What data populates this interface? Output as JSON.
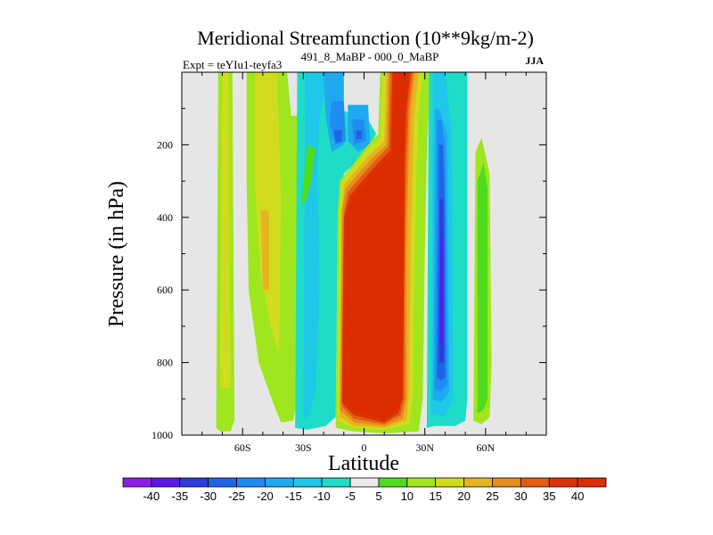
{
  "chart_data": {
    "type": "heatmap",
    "title": "Meridional Streamfunction (10**9kg/m-2)",
    "subtitle_left": "Expt = teYIu1-teyfa3",
    "subtitle_center": "491_8_MaBP - 000_0_MaBP",
    "subtitle_right": "JJA",
    "xlabel": "Latitude",
    "ylabel": "Pressure (in hPa)",
    "xlim": [
      -90,
      90
    ],
    "ylim": [
      1000,
      0
    ],
    "x_ticks": [
      {
        "value": -60,
        "label": "60S"
      },
      {
        "value": -30,
        "label": "30S"
      },
      {
        "value": 0,
        "label": "0"
      },
      {
        "value": 30,
        "label": "30N"
      },
      {
        "value": 60,
        "label": "60N"
      }
    ],
    "y_ticks": [
      {
        "value": 200,
        "label": "200"
      },
      {
        "value": 400,
        "label": "400"
      },
      {
        "value": 600,
        "label": "600"
      },
      {
        "value": 800,
        "label": "800"
      },
      {
        "value": 1000,
        "label": "1000"
      }
    ],
    "missing_color": "#e6e6e6",
    "colorbar": {
      "labels": [
        "-40",
        "-35",
        "-30",
        "-25",
        "-20",
        "-15",
        "-10",
        "-5",
        "5",
        "10",
        "15",
        "20",
        "25",
        "30",
        "35",
        "40"
      ],
      "colors": [
        "#8c1ee6",
        "#5a19e6",
        "#2d3cdc",
        "#1e64e6",
        "#1e8cf0",
        "#1eaaf0",
        "#1ec8e6",
        "#1edcc8",
        "#ebebeb",
        "#50dc1e",
        "#a0e61e",
        "#d2dc1e",
        "#e6b41e",
        "#e68c1e",
        "#e65a14",
        "#dc3200",
        "#dc2d00"
      ]
    },
    "regions": [
      {
        "level": "10",
        "polygon": [
          [
            -73,
            980
          ],
          [
            -72,
            0
          ],
          [
            -65,
            0
          ],
          [
            -64,
            960
          ],
          [
            -66,
            990
          ],
          [
            -71,
            990
          ]
        ]
      },
      {
        "level": "15",
        "polygon": [
          [
            -71,
            870
          ],
          [
            -70,
            0
          ],
          [
            -67,
            0
          ],
          [
            -66,
            870
          ]
        ]
      },
      {
        "level": "10",
        "polygon": [
          [
            -58,
            0
          ],
          [
            -38,
            0
          ],
          [
            -36,
            120
          ],
          [
            -30,
            120
          ],
          [
            -33,
            900
          ],
          [
            -35,
            960
          ],
          [
            -41,
            965
          ],
          [
            -45,
            910
          ],
          [
            -52,
            800
          ],
          [
            -57,
            600
          ],
          [
            -58,
            300
          ]
        ]
      },
      {
        "level": "15",
        "polygon": [
          [
            -54,
            0
          ],
          [
            -43,
            0
          ],
          [
            -41,
            350
          ],
          [
            -42,
            780
          ],
          [
            -46,
            700
          ],
          [
            -51,
            560
          ],
          [
            -54,
            300
          ]
        ]
      },
      {
        "level": "20",
        "polygon": [
          [
            -51,
            380
          ],
          [
            -47,
            380
          ],
          [
            -47,
            600
          ],
          [
            -50,
            600
          ]
        ]
      },
      {
        "level": "-5",
        "polygon": [
          [
            -34,
            980
          ],
          [
            -33,
            0
          ],
          [
            -18,
            0
          ],
          [
            -14,
            100
          ],
          [
            -8,
            110
          ],
          [
            -2,
            120
          ],
          [
            3,
            140
          ],
          [
            6,
            170
          ],
          [
            3,
            200
          ],
          [
            -3,
            240
          ],
          [
            -10,
            280
          ],
          [
            -13,
            380
          ],
          [
            -14,
            950
          ],
          [
            -19,
            975
          ],
          [
            -28,
            985
          ]
        ]
      },
      {
        "level": "-10",
        "polygon": [
          [
            -30,
            960
          ],
          [
            -29,
            0
          ],
          [
            -18,
            0
          ],
          [
            -20,
            70
          ],
          [
            -22,
            120
          ],
          [
            -23,
            250
          ],
          [
            -22,
            600
          ],
          [
            -24,
            880
          ],
          [
            -27,
            945
          ]
        ]
      },
      {
        "level": "-15",
        "polygon": [
          [
            -20,
            0
          ],
          [
            -10,
            0
          ],
          [
            -10,
            200
          ],
          [
            -16,
            220
          ],
          [
            -19,
            120
          ]
        ]
      },
      {
        "level": "-20",
        "polygon": [
          [
            -16,
            80
          ],
          [
            -10,
            80
          ],
          [
            -9,
            190
          ],
          [
            -14,
            200
          ],
          [
            -17,
            140
          ]
        ]
      },
      {
        "level": "-25",
        "polygon": [
          [
            -15,
            160
          ],
          [
            -11,
            160
          ],
          [
            -11,
            190
          ],
          [
            -14,
            195
          ]
        ]
      },
      {
        "level": "-15",
        "polygon": [
          [
            -8,
            90
          ],
          [
            2,
            90
          ],
          [
            3,
            200
          ],
          [
            -3,
            220
          ],
          [
            -8,
            190
          ]
        ]
      },
      {
        "level": "-20",
        "polygon": [
          [
            -6,
            130
          ],
          [
            0,
            130
          ],
          [
            1,
            190
          ],
          [
            -5,
            200
          ]
        ]
      },
      {
        "level": "-25",
        "polygon": [
          [
            -4,
            160
          ],
          [
            -1,
            160
          ],
          [
            -1,
            185
          ],
          [
            -4,
            185
          ]
        ]
      },
      {
        "level": "5",
        "polygon": [
          [
            -31,
            360
          ],
          [
            -28,
            200
          ],
          [
            -24,
            210
          ],
          [
            -26,
            300
          ],
          [
            -29,
            360
          ]
        ]
      },
      {
        "level": "-10",
        "polygon": [
          [
            -12,
            390
          ],
          [
            -10,
            300
          ],
          [
            -6,
            250
          ],
          [
            0,
            220
          ],
          [
            3,
            205
          ],
          [
            4,
            200
          ],
          [
            0,
            240
          ],
          [
            -8,
            280
          ]
        ]
      },
      {
        "level": "10",
        "polygon": [
          [
            -14,
            980
          ],
          [
            -13,
            380
          ],
          [
            -12,
            300
          ],
          [
            -5,
            250
          ],
          [
            2,
            200
          ],
          [
            7,
            170
          ],
          [
            8,
            0
          ],
          [
            34,
            0
          ],
          [
            32,
            90
          ],
          [
            31,
            230
          ],
          [
            30,
            500
          ],
          [
            29,
            900
          ],
          [
            27,
            990
          ],
          [
            10,
            995
          ],
          [
            -5,
            990
          ]
        ]
      },
      {
        "level": "15",
        "polygon": [
          [
            -13,
            960
          ],
          [
            -12,
            380
          ],
          [
            -11,
            300
          ],
          [
            -5,
            260
          ],
          [
            2,
            210
          ],
          [
            8,
            180
          ],
          [
            9,
            0
          ],
          [
            29,
            0
          ],
          [
            27,
            100
          ],
          [
            26,
            250
          ],
          [
            25,
            500
          ],
          [
            24,
            900
          ],
          [
            22,
            970
          ],
          [
            10,
            985
          ],
          [
            -5,
            980
          ]
        ]
      },
      {
        "level": "20",
        "polygon": [
          [
            -12,
            950
          ],
          [
            -11,
            380
          ],
          [
            -10,
            310
          ],
          [
            -4,
            270
          ],
          [
            4,
            220
          ],
          [
            10,
            190
          ],
          [
            11,
            0
          ],
          [
            27,
            0
          ],
          [
            25,
            100
          ],
          [
            24,
            250
          ],
          [
            23,
            500
          ],
          [
            22,
            900
          ],
          [
            21,
            960
          ],
          [
            10,
            980
          ],
          [
            -5,
            975
          ]
        ]
      },
      {
        "level": "25",
        "polygon": [
          [
            -12,
            930
          ],
          [
            -11,
            380
          ],
          [
            -9,
            320
          ],
          [
            -3,
            280
          ],
          [
            5,
            230
          ],
          [
            11,
            200
          ],
          [
            12,
            0
          ],
          [
            25,
            0
          ],
          [
            23,
            100
          ],
          [
            22,
            250
          ],
          [
            21,
            500
          ],
          [
            21,
            900
          ],
          [
            19,
            955
          ],
          [
            10,
            975
          ],
          [
            -5,
            965
          ]
        ]
      },
      {
        "level": "30",
        "polygon": [
          [
            -11,
            920
          ],
          [
            -10,
            390
          ],
          [
            -8,
            330
          ],
          [
            -2,
            290
          ],
          [
            6,
            240
          ],
          [
            12,
            205
          ],
          [
            13,
            0
          ],
          [
            24,
            0
          ],
          [
            22,
            100
          ],
          [
            21,
            250
          ],
          [
            20,
            500
          ],
          [
            20,
            900
          ],
          [
            18,
            945
          ],
          [
            10,
            970
          ],
          [
            -5,
            955
          ]
        ]
      },
      {
        "level": "35",
        "polygon": [
          [
            -11,
            910
          ],
          [
            -10,
            400
          ],
          [
            -7,
            340
          ],
          [
            -1,
            300
          ],
          [
            7,
            250
          ],
          [
            13,
            215
          ],
          [
            14,
            0
          ],
          [
            23,
            0
          ],
          [
            21,
            100
          ],
          [
            20,
            250
          ],
          [
            20,
            500
          ],
          [
            19,
            900
          ],
          [
            17,
            940
          ],
          [
            10,
            965
          ],
          [
            -5,
            945
          ]
        ]
      },
      {
        "level": "40",
        "polygon": [
          [
            -10,
            900
          ],
          [
            -9,
            400
          ],
          [
            -6,
            350
          ],
          [
            0,
            310
          ],
          [
            8,
            260
          ],
          [
            14,
            225
          ],
          [
            15,
            0
          ],
          [
            22,
            0
          ],
          [
            20,
            100
          ],
          [
            20,
            250
          ],
          [
            19,
            500
          ],
          [
            19,
            900
          ],
          [
            16,
            930
          ],
          [
            10,
            955
          ],
          [
            -5,
            935
          ]
        ]
      },
      {
        "level": "-5",
        "polygon": [
          [
            31,
            980
          ],
          [
            32,
            0
          ],
          [
            51,
            0
          ],
          [
            51,
            900
          ],
          [
            50,
            960
          ],
          [
            45,
            975
          ],
          [
            35,
            975
          ]
        ]
      },
      {
        "level": "-10",
        "polygon": [
          [
            33,
            940
          ],
          [
            34,
            0
          ],
          [
            40,
            0
          ],
          [
            43,
            150
          ],
          [
            44,
            900
          ],
          [
            40,
            950
          ],
          [
            36,
            945
          ]
        ]
      },
      {
        "level": "-15",
        "polygon": [
          [
            34,
            900
          ],
          [
            35,
            100
          ],
          [
            37,
            100
          ],
          [
            41,
            170
          ],
          [
            42,
            880
          ],
          [
            38,
            910
          ]
        ]
      },
      {
        "level": "-20",
        "polygon": [
          [
            35,
            870
          ],
          [
            36,
            130
          ],
          [
            38,
            130
          ],
          [
            40,
            200
          ],
          [
            41,
            860
          ],
          [
            38,
            880
          ]
        ]
      },
      {
        "level": "-25",
        "polygon": [
          [
            36,
            840
          ],
          [
            37,
            200
          ],
          [
            39,
            200
          ],
          [
            40,
            400
          ],
          [
            40,
            840
          ],
          [
            38,
            850
          ]
        ]
      },
      {
        "level": "-30",
        "polygon": [
          [
            37,
            800
          ],
          [
            37.5,
            350
          ],
          [
            39,
            350
          ],
          [
            39.5,
            800
          ]
        ]
      },
      {
        "level": "-35",
        "polygon": [
          [
            37.5,
            750
          ],
          [
            38,
            450
          ],
          [
            39,
            450
          ],
          [
            39,
            750
          ]
        ]
      },
      {
        "level": "10",
        "polygon": [
          [
            54,
            960
          ],
          [
            55,
            220
          ],
          [
            58,
            180
          ],
          [
            62,
            280
          ],
          [
            63,
            800
          ],
          [
            62,
            950
          ],
          [
            58,
            970
          ]
        ]
      },
      {
        "level": "5",
        "polygon": [
          [
            56,
            940
          ],
          [
            56,
            300
          ],
          [
            59,
            250
          ],
          [
            61,
            320
          ],
          [
            61,
            900
          ],
          [
            59,
            930
          ]
        ]
      }
    ]
  }
}
